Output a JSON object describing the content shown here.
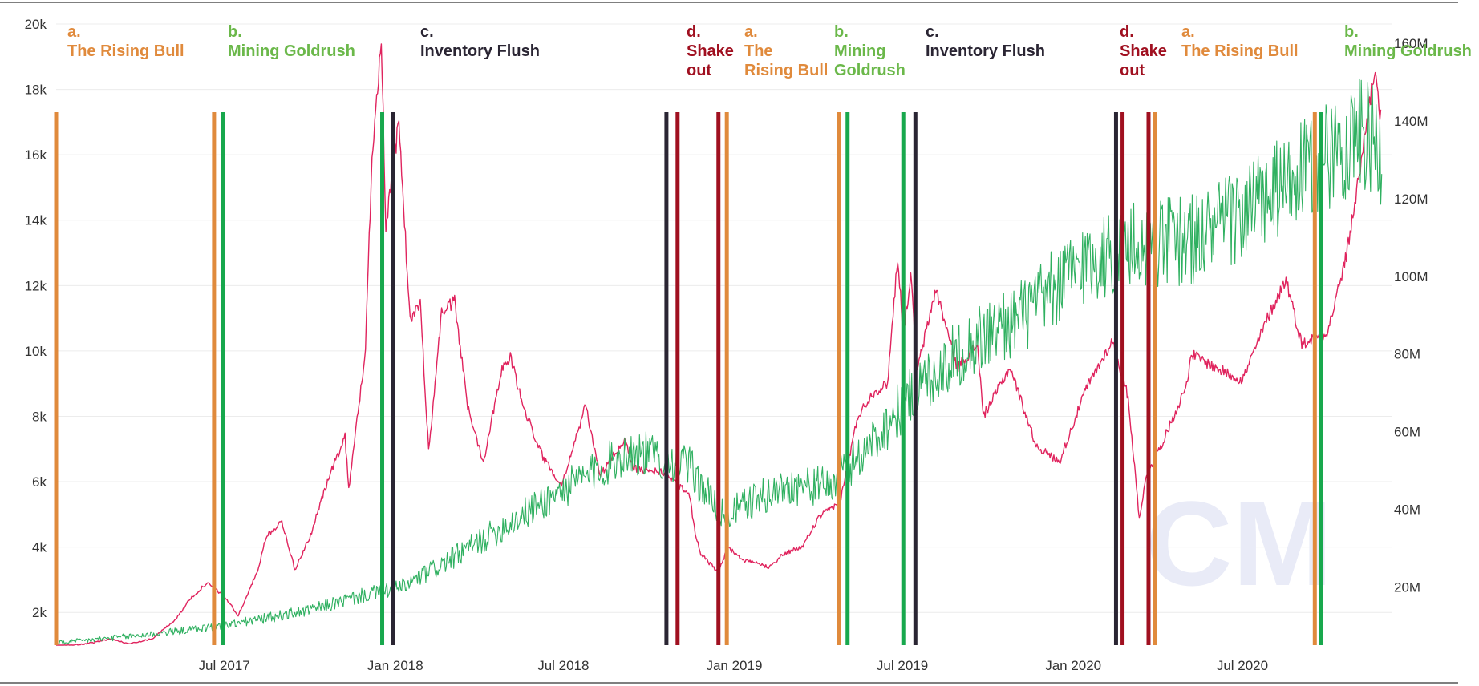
{
  "chart_data": {
    "type": "line",
    "grid": true,
    "legend": "none",
    "x_range": [
      "2017-01-01",
      "2020-11-30"
    ],
    "x_ticks": [
      {
        "date": "2017-07-01",
        "label": "Jul 2017"
      },
      {
        "date": "2018-01-01",
        "label": "Jan 2018"
      },
      {
        "date": "2018-07-01",
        "label": "Jul 2018"
      },
      {
        "date": "2019-01-01",
        "label": "Jan 2019"
      },
      {
        "date": "2019-07-01",
        "label": "Jul 2019"
      },
      {
        "date": "2020-01-01",
        "label": "Jan 2020"
      },
      {
        "date": "2020-07-01",
        "label": "Jul 2020"
      }
    ],
    "y_left": {
      "range": [
        1000,
        20000
      ],
      "ticks": [
        {
          "value": 2000,
          "label": "2k"
        },
        {
          "value": 4000,
          "label": "4k"
        },
        {
          "value": 6000,
          "label": "6k"
        },
        {
          "value": 8000,
          "label": "8k"
        },
        {
          "value": 10000,
          "label": "10k"
        },
        {
          "value": 12000,
          "label": "12k"
        },
        {
          "value": 14000,
          "label": "14k"
        },
        {
          "value": 16000,
          "label": "16k"
        },
        {
          "value": 18000,
          "label": "18k"
        },
        {
          "value": 20000,
          "label": "20k"
        }
      ]
    },
    "y_right": {
      "range": [
        5000000,
        165000000
      ],
      "ticks": [
        {
          "value": 20000000,
          "label": "20M"
        },
        {
          "value": 40000000,
          "label": "40M"
        },
        {
          "value": 60000000,
          "label": "60M"
        },
        {
          "value": 80000000,
          "label": "80M"
        },
        {
          "value": 100000000,
          "label": "100M"
        },
        {
          "value": 120000000,
          "label": "120M"
        },
        {
          "value": 140000000,
          "label": "140M"
        },
        {
          "value": 160000000,
          "label": "160M"
        }
      ]
    },
    "series": [
      {
        "color": "#e0245e",
        "axis": "left",
        "points": [
          [
            "2017-01-01",
            970
          ],
          [
            "2017-02-01",
            1030
          ],
          [
            "2017-03-01",
            1190
          ],
          [
            "2017-03-20",
            1040
          ],
          [
            "2017-04-15",
            1200
          ],
          [
            "2017-05-10",
            1800
          ],
          [
            "2017-05-25",
            2400
          ],
          [
            "2017-06-12",
            2900
          ],
          [
            "2017-07-01",
            2500
          ],
          [
            "2017-07-16",
            1900
          ],
          [
            "2017-08-05",
            3200
          ],
          [
            "2017-08-15",
            4300
          ],
          [
            "2017-09-01",
            4800
          ],
          [
            "2017-09-15",
            3300
          ],
          [
            "2017-10-01",
            4300
          ],
          [
            "2017-10-20",
            6000
          ],
          [
            "2017-11-08",
            7400
          ],
          [
            "2017-11-12",
            5800
          ],
          [
            "2017-11-30",
            10000
          ],
          [
            "2017-12-07",
            16000
          ],
          [
            "2017-12-17",
            19500
          ],
          [
            "2017-12-22",
            13800
          ],
          [
            "2018-01-05",
            17000
          ],
          [
            "2018-01-17",
            10900
          ],
          [
            "2018-01-28",
            11500
          ],
          [
            "2018-02-06",
            6900
          ],
          [
            "2018-02-20",
            11200
          ],
          [
            "2018-03-06",
            11500
          ],
          [
            "2018-03-20",
            8300
          ],
          [
            "2018-04-06",
            6600
          ],
          [
            "2018-04-25",
            9400
          ],
          [
            "2018-05-05",
            9800
          ],
          [
            "2018-05-20",
            8200
          ],
          [
            "2018-06-10",
            6700
          ],
          [
            "2018-06-29",
            5900
          ],
          [
            "2018-07-25",
            8300
          ],
          [
            "2018-08-10",
            6200
          ],
          [
            "2018-09-05",
            7300
          ],
          [
            "2018-09-15",
            6400
          ],
          [
            "2018-10-15",
            6300
          ],
          [
            "2018-11-14",
            5600
          ],
          [
            "2018-11-20",
            4400
          ],
          [
            "2018-11-26",
            3800
          ],
          [
            "2018-12-15",
            3200
          ],
          [
            "2018-12-25",
            4000
          ],
          [
            "2019-01-10",
            3600
          ],
          [
            "2019-02-07",
            3400
          ],
          [
            "2019-02-24",
            3800
          ],
          [
            "2019-03-15",
            4000
          ],
          [
            "2019-04-02",
            4900
          ],
          [
            "2019-04-25",
            5400
          ],
          [
            "2019-05-14",
            8000
          ],
          [
            "2019-05-30",
            8700
          ],
          [
            "2019-06-15",
            9000
          ],
          [
            "2019-06-26",
            12900
          ],
          [
            "2019-07-02",
            10500
          ],
          [
            "2019-07-10",
            12300
          ],
          [
            "2019-07-17",
            9400
          ],
          [
            "2019-08-06",
            11900
          ],
          [
            "2019-08-29",
            9500
          ],
          [
            "2019-09-20",
            10200
          ],
          [
            "2019-09-26",
            8000
          ],
          [
            "2019-10-25",
            9500
          ],
          [
            "2019-11-22",
            7100
          ],
          [
            "2019-12-17",
            6600
          ],
          [
            "2020-01-14",
            8800
          ],
          [
            "2020-02-12",
            10300
          ],
          [
            "2020-02-29",
            8600
          ],
          [
            "2020-03-12",
            4900
          ],
          [
            "2020-03-20",
            6200
          ],
          [
            "2020-04-06",
            7200
          ],
          [
            "2020-04-30",
            8800
          ],
          [
            "2020-05-08",
            9900
          ],
          [
            "2020-06-01",
            9500
          ],
          [
            "2020-07-01",
            9100
          ],
          [
            "2020-07-28",
            11000
          ],
          [
            "2020-08-17",
            12200
          ],
          [
            "2020-09-03",
            10200
          ],
          [
            "2020-10-01",
            10600
          ],
          [
            "2020-10-21",
            12900
          ],
          [
            "2020-11-05",
            15600
          ],
          [
            "2020-11-20",
            18600
          ],
          [
            "2020-11-27",
            17100
          ]
        ]
      },
      {
        "color": "#2fb060",
        "axis": "right",
        "points": [
          [
            "2017-01-01",
            5500000
          ],
          [
            "2017-04-01",
            7500000
          ],
          [
            "2017-07-01",
            10000000
          ],
          [
            "2017-10-01",
            14000000
          ],
          [
            "2017-12-01",
            18000000
          ],
          [
            "2018-01-10",
            20000000
          ],
          [
            "2018-03-01",
            27000000
          ],
          [
            "2018-05-01",
            36000000
          ],
          [
            "2018-07-01",
            45000000
          ],
          [
            "2018-09-10",
            55000000
          ],
          [
            "2018-11-10",
            52000000
          ],
          [
            "2018-12-20",
            38000000
          ],
          [
            "2019-01-20",
            42000000
          ],
          [
            "2019-03-01",
            46000000
          ],
          [
            "2019-04-15",
            46000000
          ],
          [
            "2019-06-01",
            58000000
          ],
          [
            "2019-07-20",
            72000000
          ],
          [
            "2019-09-15",
            83000000
          ],
          [
            "2019-11-15",
            91000000
          ],
          [
            "2020-01-15",
            104000000
          ],
          [
            "2020-03-15",
            108000000
          ],
          [
            "2020-05-15",
            110000000
          ],
          [
            "2020-07-15",
            118000000
          ],
          [
            "2020-09-15",
            128000000
          ],
          [
            "2020-11-01",
            137000000
          ],
          [
            "2020-11-28",
            133000000
          ]
        ]
      }
    ],
    "phase_lines": [
      {
        "date": "2017-01-01",
        "color": "#e08a3c"
      },
      {
        "date": "2017-06-20",
        "color": "#e08a3c"
      },
      {
        "date": "2017-06-30",
        "color": "#18a84d"
      },
      {
        "date": "2017-12-18",
        "color": "#18a84d"
      },
      {
        "date": "2017-12-30",
        "color": "#2a2533"
      },
      {
        "date": "2018-10-20",
        "color": "#2a2533"
      },
      {
        "date": "2018-11-01",
        "color": "#a01020"
      },
      {
        "date": "2018-12-15",
        "color": "#a01020"
      },
      {
        "date": "2018-12-24",
        "color": "#e08a3c"
      },
      {
        "date": "2019-04-24",
        "color": "#e08a3c"
      },
      {
        "date": "2019-05-03",
        "color": "#18a84d"
      },
      {
        "date": "2019-07-02",
        "color": "#18a84d"
      },
      {
        "date": "2019-07-15",
        "color": "#2a2533"
      },
      {
        "date": "2020-02-16",
        "color": "#2a2533"
      },
      {
        "date": "2020-02-23",
        "color": "#a01020"
      },
      {
        "date": "2020-03-22",
        "color": "#a01020"
      },
      {
        "date": "2020-03-29",
        "color": "#e08a3c"
      },
      {
        "date": "2020-09-17",
        "color": "#e08a3c"
      },
      {
        "date": "2020-09-24",
        "color": "#18a84d"
      }
    ],
    "annotations": [
      {
        "letter": "a.",
        "lines": [
          "The Rising Bull"
        ],
        "color": "#e08a3c"
      },
      {
        "letter": "b.",
        "lines": [
          "Mining Goldrush"
        ],
        "color": "#6bb84a"
      },
      {
        "letter": "c.",
        "lines": [
          "Inventory Flush"
        ],
        "color": "#2a2533"
      },
      {
        "letter": "d.",
        "lines": [
          "Shake",
          "out"
        ],
        "color": "#a01020"
      },
      {
        "letter": "a.",
        "lines": [
          "The",
          "Rising Bull"
        ],
        "color": "#e08a3c"
      },
      {
        "letter": "b.",
        "lines": [
          "Mining",
          "Goldrush"
        ],
        "color": "#6bb84a"
      },
      {
        "letter": "c.",
        "lines": [
          "Inventory Flush"
        ],
        "color": "#2a2533"
      },
      {
        "letter": "d.",
        "lines": [
          "Shake",
          "out"
        ],
        "color": "#a01020"
      },
      {
        "letter": "a.",
        "lines": [
          "The Rising Bull"
        ],
        "color": "#e08a3c"
      },
      {
        "letter": "b.",
        "lines": [
          "Mining Goldrush"
        ],
        "color": "#6bb84a"
      }
    ],
    "watermark": "CM"
  }
}
